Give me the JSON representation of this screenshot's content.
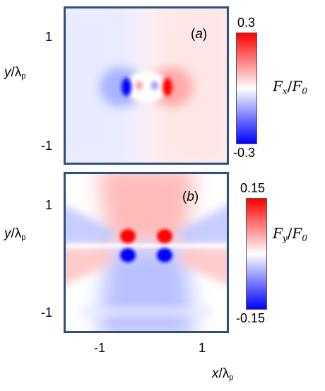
{
  "chart_data": [
    {
      "type": "heatmap",
      "panel_label": "(a)",
      "panel_letter": "a",
      "quantity": "Fx/F0",
      "colorbar": {
        "max_label": "0.3",
        "min_label": "-0.3",
        "max": 0.3,
        "min": -0.3,
        "label_main": "F",
        "label_sub": "x",
        "label_den": "F",
        "label_den_sub": "0"
      },
      "y_ticks": [
        "1",
        "-1"
      ],
      "colors": {
        "positive": "#ff0000",
        "zero": "#ffffff",
        "negative": "#0000ff"
      }
    },
    {
      "type": "heatmap",
      "panel_label": "(b)",
      "panel_letter": "b",
      "quantity": "Fy/F0",
      "colorbar": {
        "max_label": "0.15",
        "min_label": "-0.15",
        "max": 0.15,
        "min": -0.15,
        "label_main": "F",
        "label_sub": "y",
        "label_den": "F",
        "label_den_sub": "0"
      },
      "y_ticks": [
        "1",
        "-1"
      ],
      "x_ticks": [
        "-1",
        "1"
      ],
      "colors": {
        "positive": "#ff0000",
        "zero": "#ffffff",
        "negative": "#0000ff"
      }
    }
  ],
  "axes": {
    "ylabel_var": "y",
    "xlabel_var": "x",
    "lambda": "λ",
    "lambda_sub": "p"
  },
  "frame_color": "#2f4f7f"
}
